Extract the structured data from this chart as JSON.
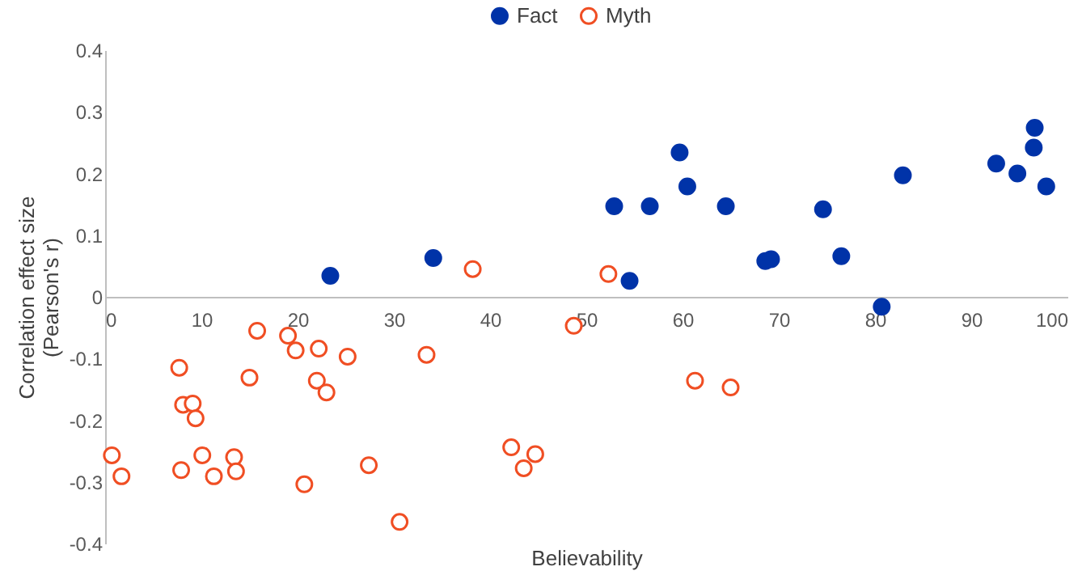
{
  "chart_data": {
    "type": "scatter",
    "xlabel": "Believability",
    "ylabel": "Correlation effect size\n(Pearson's r)",
    "xlim": [
      0,
      100
    ],
    "xticks": [
      0,
      10,
      20,
      30,
      40,
      50,
      60,
      70,
      80,
      90,
      100
    ],
    "ylim": [
      -0.4,
      0.4
    ],
    "yticks": [
      -0.4,
      -0.3,
      -0.2,
      -0.1,
      0,
      0.1,
      0.2,
      0.3,
      0.4
    ],
    "grid": false,
    "legend": "top",
    "marker": "circle",
    "series": [
      {
        "name": "Fact",
        "color": "#0033a8",
        "x": [
          23.4,
          34.1,
          52.9,
          54.5,
          56.6,
          59.7,
          60.5,
          64.5,
          68.6,
          69.2,
          74.6,
          76.5,
          80.7,
          82.9,
          92.6,
          94.8,
          96.5,
          96.6,
          97.8
        ],
        "values": [
          0.034,
          0.063,
          0.147,
          0.026,
          0.147,
          0.234,
          0.179,
          0.147,
          0.058,
          0.061,
          0.142,
          0.066,
          -0.016,
          0.197,
          0.216,
          0.2,
          0.242,
          0.274,
          0.179
        ]
      },
      {
        "name": "Myth",
        "color": "#f04e23",
        "x": [
          38.2,
          52.3,
          48.7,
          15.8,
          19.0,
          19.8,
          22.2,
          25.2,
          33.4,
          7.7,
          15.0,
          22.0,
          23.0,
          8.1,
          9.1,
          9.4,
          0.7,
          1.7,
          7.9,
          10.1,
          11.3,
          13.4,
          13.6,
          20.7,
          27.4,
          30.6,
          42.2,
          43.5,
          44.7,
          61.3,
          65.0
        ],
        "values": [
          0.045,
          0.037,
          -0.047,
          -0.055,
          -0.063,
          -0.087,
          -0.084,
          -0.097,
          -0.094,
          -0.115,
          -0.131,
          -0.136,
          -0.155,
          -0.175,
          -0.173,
          -0.197,
          -0.257,
          -0.291,
          -0.281,
          -0.257,
          -0.291,
          -0.26,
          -0.283,
          -0.304,
          -0.273,
          -0.365,
          -0.244,
          -0.278,
          -0.255,
          -0.136,
          -0.147
        ]
      }
    ]
  }
}
